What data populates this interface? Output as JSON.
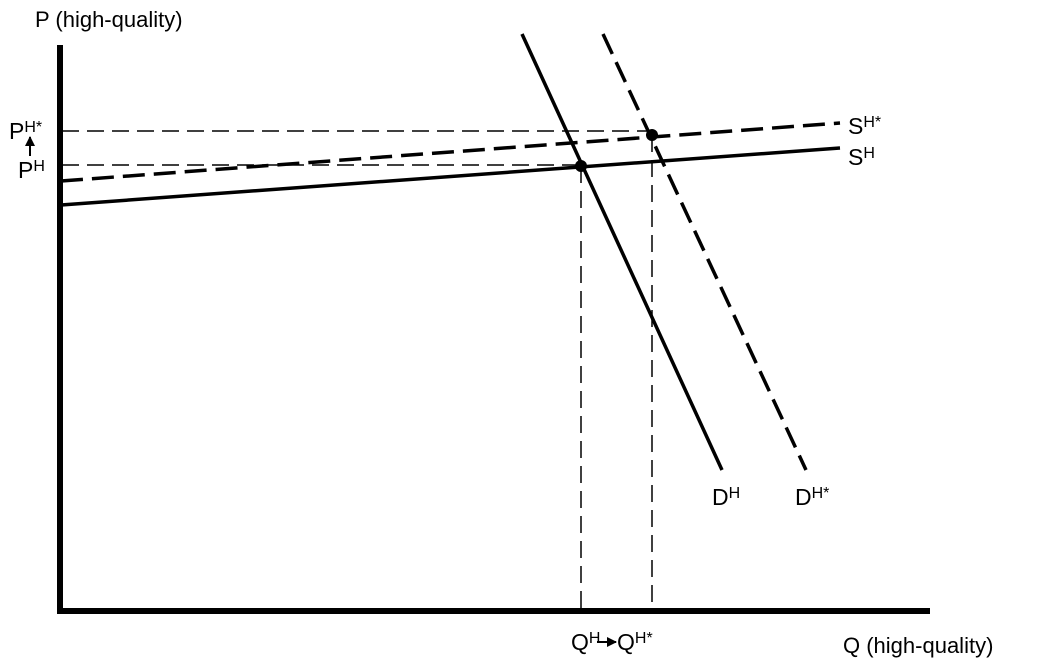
{
  "diagram": {
    "y_axis_title": "P (high-quality)",
    "x_axis_title": "Q (high-quality)",
    "supply_original": {
      "base": "S",
      "sup": "H"
    },
    "supply_new": {
      "base": "S",
      "sup": "H*"
    },
    "demand_original": {
      "base": "D",
      "sup": "H"
    },
    "demand_new": {
      "base": "D",
      "sup": "H*"
    },
    "price_original": {
      "base": "P",
      "sup": "H"
    },
    "price_new": {
      "base": "P",
      "sup": "H*"
    },
    "quantity_original": {
      "base": "Q",
      "sup": "H"
    },
    "quantity_new": {
      "base": "Q",
      "sup": "H*"
    },
    "colors": {
      "ink": "#000000",
      "background": "#ffffff"
    }
  }
}
